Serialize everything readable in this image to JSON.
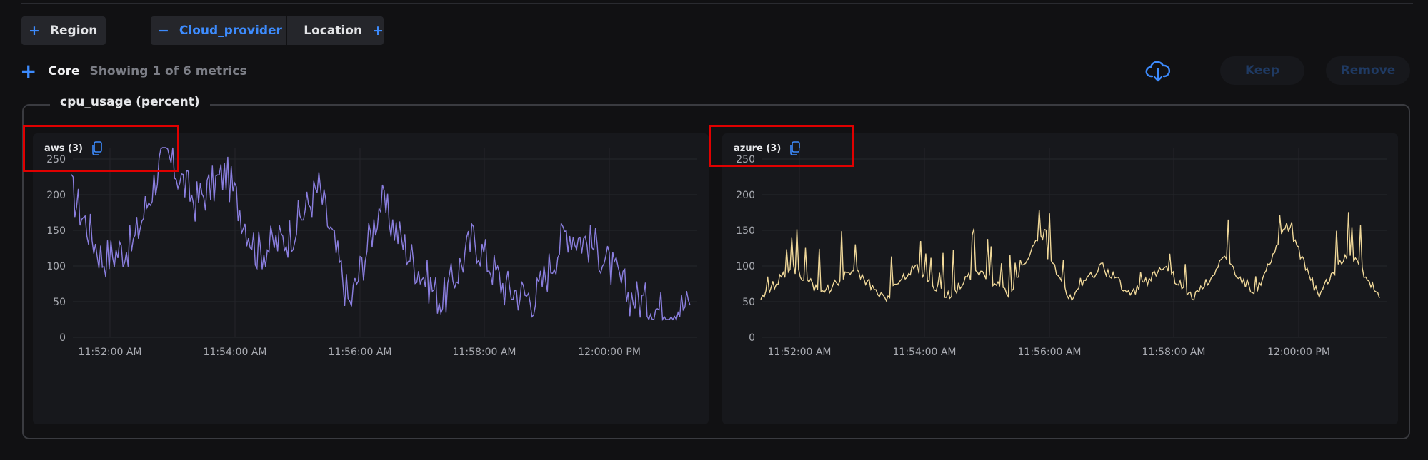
{
  "filters": {
    "region": {
      "label": "Region"
    },
    "group_by": {
      "active": "Cloud_provider",
      "next": "Location"
    }
  },
  "metrics": {
    "section": "Core",
    "summary": "Showing 1 of 6 metrics",
    "keep_label": "Keep",
    "remove_label": "Remove",
    "download_icon": "cloud-download-icon"
  },
  "group": {
    "title": "cpu_usage (percent)"
  },
  "charts": [
    {
      "label": "aws (3)",
      "color": "#8b7fe0",
      "yTicks": [
        "250",
        "200",
        "150",
        "100",
        "50",
        "0"
      ],
      "xTicks": [
        "11:52:00 AM",
        "11:54:00 AM",
        "11:56:00 AM",
        "11:58:00 AM",
        "12:00:00 PM"
      ]
    },
    {
      "label": "azure (3)",
      "color": "#f0d899",
      "yTicks": [
        "250",
        "200",
        "150",
        "100",
        "50",
        "0"
      ],
      "xTicks": [
        "11:52:00 AM",
        "11:54:00 AM",
        "11:56:00 AM",
        "11:58:00 AM",
        "12:00:00 PM"
      ]
    }
  ],
  "chart_data": [
    {
      "type": "line",
      "title": "aws (3)",
      "ylim": [
        0,
        260
      ],
      "x": [
        "11:51:00",
        "11:51:30",
        "11:52:00",
        "11:52:30",
        "11:53:00",
        "11:53:30",
        "11:54:00",
        "11:54:30",
        "11:55:00",
        "11:55:30",
        "11:56:00",
        "11:56:30",
        "11:57:00",
        "11:57:30",
        "11:58:00",
        "11:58:30",
        "11:59:00",
        "11:59:30",
        "12:00:00",
        "12:00:30",
        "12:01:00"
      ],
      "series": [
        {
          "values": [
            205,
            110,
            130,
            260,
            190,
            230,
            120,
            140,
            210,
            45,
            190,
            110,
            50,
            140,
            70,
            55,
            150,
            125,
            60,
            40,
            45
          ]
        }
      ]
    },
    {
      "type": "line",
      "title": "azure (3)",
      "ylim": [
        0,
        260
      ],
      "x": [
        "11:51:00",
        "11:51:30",
        "11:52:00",
        "11:52:30",
        "11:53:00",
        "11:53:30",
        "11:54:00",
        "11:54:30",
        "11:55:00",
        "11:55:30",
        "11:56:00",
        "11:56:30",
        "11:57:00",
        "11:57:30",
        "11:58:00",
        "11:58:30",
        "11:59:00",
        "11:59:30",
        "12:00:00",
        "12:00:30",
        "12:01:00"
      ],
      "series": [
        {
          "values": [
            55,
            100,
            60,
            95,
            55,
            100,
            55,
            95,
            60,
            140,
            55,
            100,
            60,
            100,
            55,
            110,
            60,
            160,
            60,
            120,
            55
          ]
        }
      ]
    }
  ]
}
